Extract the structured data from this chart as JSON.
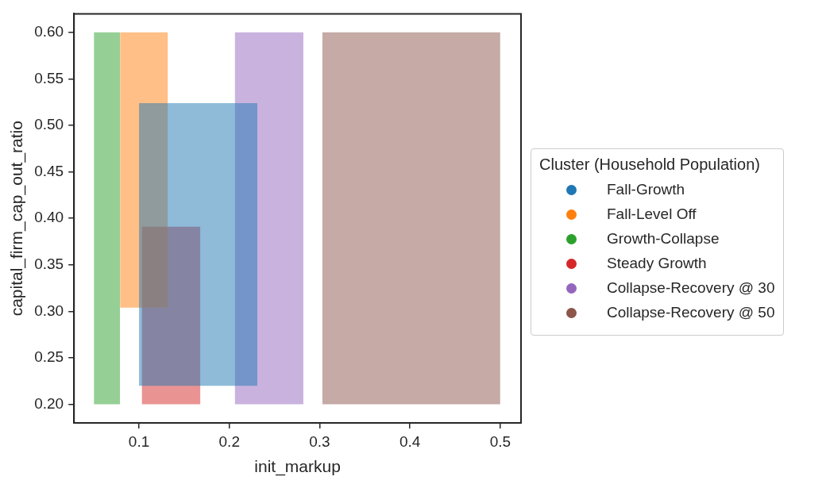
{
  "chart_data": {
    "type": "area",
    "xlabel": "init_markup",
    "ylabel": "capital_firm_cap_out_ratio",
    "legend_title": "Cluster (Household Population)",
    "legend": "right",
    "grid": false,
    "marker": "none",
    "xlim": [
      0.028,
      0.523
    ],
    "xticks": [
      0.1,
      0.2,
      0.3,
      0.4,
      0.5
    ],
    "ylim": [
      0.18,
      0.62
    ],
    "yticks": [
      {
        "value": 0.2,
        "label": "0.20"
      },
      {
        "value": 0.25,
        "label": "0.25"
      },
      {
        "value": 0.3,
        "label": "0.30"
      },
      {
        "value": 0.35,
        "label": "0.35"
      },
      {
        "value": 0.4,
        "label": "0.40"
      },
      {
        "value": 0.45,
        "label": "0.45"
      },
      {
        "value": 0.5,
        "label": "0.50"
      },
      {
        "value": 0.55,
        "label": "0.55"
      },
      {
        "value": 0.6,
        "label": "0.60"
      }
    ],
    "series": [
      {
        "name": "Fall-Growth",
        "color": "#1f77b4",
        "x": [
          0.1,
          0.231
        ],
        "values": [
          null,
          null
        ],
        "lower": [
          0.22,
          0.22
        ],
        "upper": [
          0.524,
          0.524
        ]
      },
      {
        "name": "Fall-Level Off",
        "color": "#ff7f0e",
        "x": [
          0.079,
          0.132
        ],
        "values": [
          null,
          null
        ],
        "lower": [
          0.304,
          0.304
        ],
        "upper": [
          0.6,
          0.6
        ]
      },
      {
        "name": "Growth-Collapse",
        "color": "#2ca02c",
        "x": [
          0.05,
          0.079
        ],
        "values": [
          null,
          null
        ],
        "lower": [
          0.2,
          0.2
        ],
        "upper": [
          0.6,
          0.6
        ]
      },
      {
        "name": "Steady Growth",
        "color": "#d62728",
        "x": [
          0.103,
          0.168
        ],
        "values": [
          null,
          null
        ],
        "lower": [
          0.2,
          0.2
        ],
        "upper": [
          0.391,
          0.391
        ]
      },
      {
        "name": "Collapse-Recovery @ 30",
        "color": "#9467bd",
        "x": [
          0.206,
          0.282
        ],
        "values": [
          null,
          null
        ],
        "lower": [
          0.2,
          0.2
        ],
        "upper": [
          0.6,
          0.6
        ]
      },
      {
        "name": "Collapse-Recovery @ 50",
        "color": "#8c564b",
        "x": [
          0.303,
          0.5
        ],
        "values": [
          null,
          null
        ],
        "lower": [
          0.2,
          0.2
        ],
        "upper": [
          0.6,
          0.6
        ]
      }
    ]
  }
}
